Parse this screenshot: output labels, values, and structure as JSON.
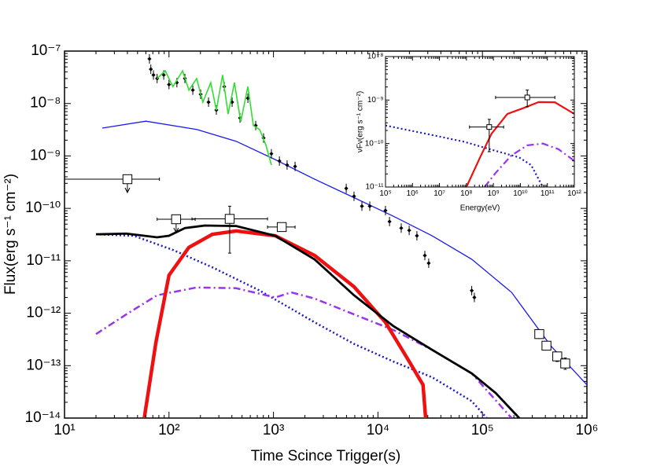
{
  "chart_data": [
    {
      "type": "line",
      "xscale": "log",
      "yscale": "log",
      "xlabel": "Time Scince Trigger(s)",
      "ylabel": "Flux(erg s⁻¹ cm⁻²)",
      "xlim": [
        10,
        1000000
      ],
      "ylim": [
        1e-14,
        1e-07
      ],
      "xticks": [
        {
          "value": 10,
          "label": "10¹"
        },
        {
          "value": 100,
          "label": "10²"
        },
        {
          "value": 1000,
          "label": "10³"
        },
        {
          "value": 10000,
          "label": "10⁴"
        },
        {
          "value": 100000,
          "label": "10⁵"
        },
        {
          "value": 1000000,
          "label": "10⁶"
        }
      ],
      "yticks": [
        {
          "value": 1e-14,
          "label": "10⁻¹⁴"
        },
        {
          "value": 1e-13,
          "label": "10⁻¹³"
        },
        {
          "value": 1e-12,
          "label": "10⁻¹²"
        },
        {
          "value": 1e-11,
          "label": "10⁻¹¹"
        },
        {
          "value": 1e-10,
          "label": "10⁻¹⁰"
        },
        {
          "value": 1e-09,
          "label": "10⁻⁹"
        },
        {
          "value": 1e-08,
          "label": "10⁻⁸"
        },
        {
          "value": 1e-07,
          "label": "10⁻⁷"
        }
      ],
      "series": [
        {
          "mode": "line",
          "style": "solid",
          "width": 1.3,
          "color": "#1a1aee",
          "x": [
            23,
            60,
            184,
            440,
            1040,
            2480,
            5900,
            14000,
            33000,
            79000,
            190000,
            450000,
            1000000
          ],
          "values": [
            3.4e-09,
            4.6e-09,
            3.2e-09,
            1.9e-09,
            8.5e-10,
            3.6e-10,
            1.6e-10,
            7.1e-11,
            3e-11,
            1.07e-11,
            2.5e-12,
            2.4e-13,
            4.3e-14
          ]
        },
        {
          "mode": "line",
          "style": "dotted",
          "width": 2.5,
          "color": "#1a1acc",
          "x": [
            20,
            46,
            110,
            260,
            740,
            2480,
            5900,
            14000,
            33000,
            79000,
            110000
          ],
          "values": [
            3.2e-11,
            3e-11,
            1.6e-11,
            7.5e-12,
            2.7e-12,
            6.7e-13,
            2.6e-13,
            1.2e-13,
            6e-14,
            2.1e-14,
            1e-14
          ]
        },
        {
          "mode": "line",
          "style": "dashdot",
          "width": 2.5,
          "color": "#9933ee",
          "x": [
            20,
            39,
            77,
            184,
            440,
            1040,
            1480,
            2480,
            5900,
            14000,
            33000,
            79000,
            190000
          ],
          "values": [
            4e-13,
            9.5e-13,
            2.2e-12,
            3.1e-12,
            3e-12,
            2e-12,
            2.5e-12,
            1.9e-12,
            9.5e-13,
            4.8e-13,
            2e-13,
            7.1e-14,
            1e-14
          ]
        },
        {
          "mode": "line",
          "style": "solid",
          "width": 4.5,
          "color": "#ee1111",
          "x": [
            58,
            75,
            100,
            155,
            260,
            440,
            1040,
            2480,
            5900,
            11800,
            19900,
            27000,
            28600
          ],
          "values": [
            1e-14,
            2.8e-13,
            5.3e-12,
            1.8e-11,
            3.2e-11,
            3.7e-11,
            3e-11,
            1.26e-11,
            3.2e-12,
            6.7e-13,
            1.2e-13,
            4.3e-14,
            1e-14
          ]
        },
        {
          "mode": "line",
          "style": "solid",
          "width": 2.8,
          "color": "#000000",
          "x": [
            20,
            39,
            77,
            100,
            142,
            220,
            440,
            1040,
            2480,
            5900,
            14000,
            33000,
            79000,
            134000,
            225000
          ],
          "values": [
            3.2e-11,
            3.3e-11,
            2.8e-11,
            3e-11,
            4.2e-11,
            4.7e-11,
            4.6e-11,
            3e-11,
            1.06e-11,
            2.2e-12,
            5.7e-13,
            2e-13,
            7.1e-14,
            3e-14,
            1e-14
          ]
        },
        {
          "mode": "points",
          "color": "#000000",
          "x": [
            65,
            67,
            71,
            77,
            89,
            100,
            119,
            142,
            169,
            201,
            239,
            284,
            338,
            402,
            478,
            569,
            676,
            804,
            955,
            1140,
            1350,
            1610,
            4970,
            5900,
            7020,
            8350,
            11800,
            12900,
            16700,
            19900,
            23600,
            28100,
            30600,
            79000,
            83700
          ],
          "values": [
            7.1e-08,
            4.5e-08,
            3.5e-08,
            3e-08,
            3.5e-08,
            2.3e-08,
            2.5e-08,
            3e-08,
            1.8e-08,
            1.5e-08,
            1.06e-08,
            7.5e-09,
            2.1e-08,
            1.06e-08,
            5.3e-09,
            1.26e-08,
            3.8e-09,
            2.2e-09,
            1.1e-09,
            8e-10,
            6.7e-10,
            6.3e-10,
            2.4e-10,
            1.7e-10,
            1.1e-10,
            1.1e-10,
            9.1e-11,
            5.6e-11,
            4.2e-11,
            3.8e-11,
            3e-11,
            1.26e-11,
            9e-12,
            2.7e-12,
            2e-12
          ]
        },
        {
          "mode": "line",
          "style": "solid",
          "width": 1.6,
          "color": "#33dd33",
          "x": [
            77,
            92,
            109,
            135,
            155,
            184,
            211,
            251,
            284,
            326,
            368,
            423,
            486,
            569,
            642,
            737,
            847,
            955
          ],
          "values": [
            3e-08,
            4.2e-08,
            2.1e-08,
            4.2e-08,
            1.8e-08,
            3e-08,
            1.06e-08,
            2.5e-08,
            7.5e-09,
            3.5e-08,
            6.3e-09,
            2.5e-08,
            4.5e-09,
            2.1e-08,
            3.8e-09,
            3.2e-09,
            1.6e-09,
            6.7e-10
          ]
        },
        {
          "mode": "errorpoints",
          "color": "#000000",
          "x": [
            40,
            117,
            381,
            1200,
            350000,
            410000,
            520000,
            620000
          ],
          "values": [
            3.6e-10,
            6.2e-11,
            6.3e-11,
            4.4e-11,
            4e-13,
            2.4e-13,
            1.5e-13,
            1.1e-13
          ],
          "x_low": [
            10,
            77,
            166,
            877,
            330000,
            380000,
            480000,
            580000
          ],
          "x_high": [
            81,
            178,
            877,
            1610,
            370000,
            440000,
            560000,
            670000
          ],
          "y_low": [
            null,
            null,
            1.4e-11,
            null,
            3.3e-13,
            2e-13,
            1.2e-13,
            8.5e-14
          ],
          "y_high": [
            null,
            null,
            1.1e-10,
            null,
            4.8e-13,
            2.9e-13,
            1.8e-13,
            1.4e-13
          ],
          "upper_limit": [
            true,
            true,
            false,
            false,
            false,
            false,
            false,
            false
          ]
        }
      ]
    },
    {
      "type": "line",
      "xscale": "log",
      "yscale": "log",
      "xlabel": "Energy(eV)",
      "ylabel": "νFν(erg s⁻¹ cm⁻²)",
      "xlim": [
        100000,
        1000000000000
      ],
      "ylim": [
        1e-11,
        1e-08
      ],
      "xticks": [
        {
          "value": 100000,
          "label": "10⁵"
        },
        {
          "value": 1000000,
          "label": "10⁶"
        },
        {
          "value": 10000000,
          "label": "10⁷"
        },
        {
          "value": 100000000,
          "label": "10⁸"
        },
        {
          "value": 1000000000,
          "label": "10⁹"
        },
        {
          "value": 10000000000,
          "label": "10¹⁰"
        },
        {
          "value": 100000000000,
          "label": "10¹¹"
        },
        {
          "value": 1000000000000,
          "label": "10¹²"
        }
      ],
      "yticks": [
        {
          "value": 1e-11,
          "label": "10⁻¹¹"
        },
        {
          "value": 1e-10,
          "label": "10⁻¹⁰"
        },
        {
          "value": 1e-09,
          "label": "10⁻⁹"
        },
        {
          "value": 1e-08,
          "label": "10⁻⁸"
        }
      ],
      "series": [
        {
          "mode": "line",
          "style": "dotted",
          "width": 2.2,
          "color": "#1a1acc",
          "x": [
            100000,
            2900000,
            82000000,
            1200000000,
            9000000000,
            25000000000,
            68000000000
          ],
          "values": [
            2.6e-10,
            1.7e-10,
            1.1e-10,
            6.8e-11,
            4.8e-11,
            3.2e-11,
            1e-11
          ]
        },
        {
          "mode": "line",
          "style": "dashdot",
          "width": 2.2,
          "color": "#9933ee",
          "x": [
            470000000,
            1200000000,
            4600000000,
            18000000000,
            68000000000,
            260000000000,
            1000000000000
          ],
          "values": [
            1e-11,
            2.1e-11,
            5.3e-11,
            9.1e-11,
            1e-10,
            7.4e-11,
            4e-11
          ]
        },
        {
          "mode": "line",
          "style": "solid",
          "width": 2.2,
          "color": "#ee1111",
          "x": [
            100000000,
            320000000,
            860000000,
            3300000000,
            12600000000,
            48000000000,
            190000000000,
            1000000000000
          ],
          "values": [
            1e-11,
            4.8e-11,
            1.7e-10,
            4.8e-10,
            6.5e-10,
            9e-10,
            8.9e-10,
            4.8e-10
          ]
        },
        {
          "mode": "errorpoints",
          "color": "#000000",
          "x": [
            700000000,
            18000000000
          ],
          "values": [
            2.4e-10,
            1.15e-09
          ],
          "x_low": [
            130000000,
            1200000000
          ],
          "x_high": [
            2400000000,
            190000000000
          ],
          "y_low": [
            6.5e-11,
            7e-10
          ],
          "y_high": [
            3.6e-10,
            1.7e-09
          ],
          "upper_limit": [
            false,
            false
          ]
        }
      ]
    }
  ]
}
